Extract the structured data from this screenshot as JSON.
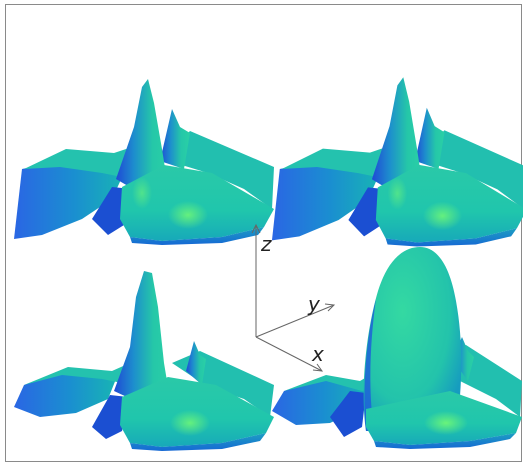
{
  "axes": {
    "z_label": "z",
    "y_label": "y",
    "x_label": "x"
  },
  "colors": {
    "surface_light": "#26d0a8",
    "surface_mid": "#14b6b0",
    "surface_dark": "#1f54d8",
    "highlight": "#6dfc7c",
    "axis_line": "#666666",
    "frame_border": "#8a8a8a"
  },
  "panels": [
    {
      "id": "top-left"
    },
    {
      "id": "top-right"
    },
    {
      "id": "bottom-left"
    },
    {
      "id": "bottom-right"
    }
  ]
}
